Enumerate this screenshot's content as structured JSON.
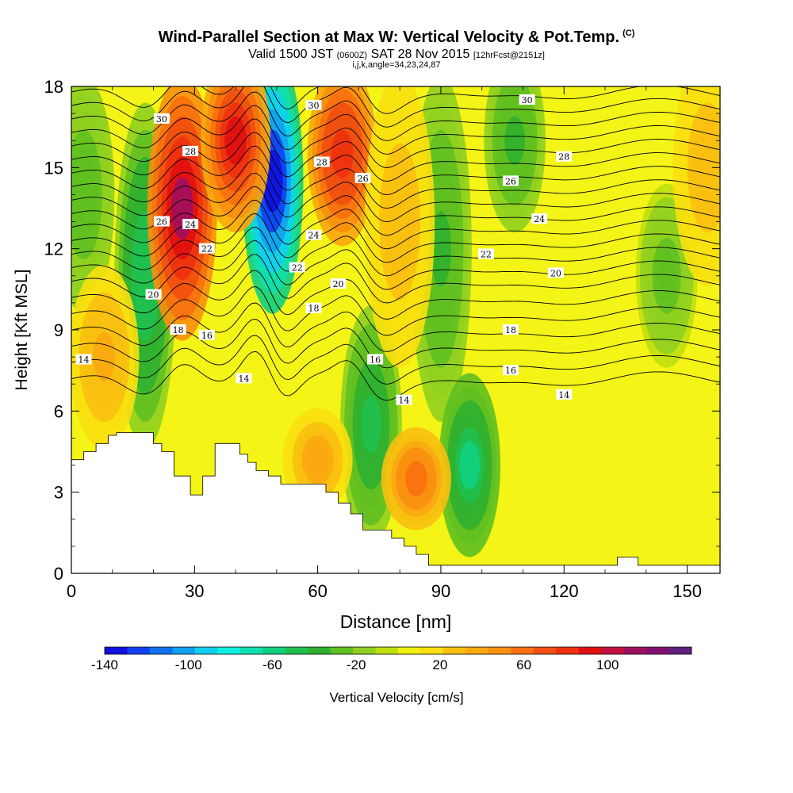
{
  "header": {
    "title": "Wind-Parallel Section at Max W: Vertical Velocity & Pot.Temp.",
    "copyright": "(C)",
    "valid_main": "Valid 1500 JST",
    "valid_utc": "(0600Z)",
    "valid_date": "SAT 28 Nov 2015",
    "forecast": "[12hrFcst@2151z]",
    "indices": "i,j,k,angle=34,23,24,87"
  },
  "chart_data": {
    "type": "heatmap",
    "xlabel": "Distance [nm]",
    "ylabel": "Height [Kft MSL]",
    "xlim": [
      0,
      158
    ],
    "ylim": [
      0,
      18
    ],
    "xticks": [
      0,
      30,
      60,
      90,
      120,
      150
    ],
    "yticks": [
      0,
      3,
      6,
      9,
      12,
      15,
      18
    ],
    "grid": false,
    "colorbar": {
      "label": "Vertical Velocity [cm/s]",
      "min": -140,
      "max": 140,
      "step": 10,
      "tick_labels": [
        -140,
        -100,
        -60,
        -20,
        20,
        60,
        100
      ],
      "colors": [
        "#1010e0",
        "#1040f0",
        "#1070f0",
        "#10a0f0",
        "#10d0f0",
        "#10f0e0",
        "#10e0b0",
        "#10d080",
        "#20c050",
        "#30b030",
        "#60c020",
        "#90d020",
        "#c0e010",
        "#f0f010",
        "#f8e010",
        "#f8c010",
        "#f8a810",
        "#f89010",
        "#f87010",
        "#f05010",
        "#f03010",
        "#e01010",
        "#c01040",
        "#a01060",
        "#801070",
        "#602080"
      ]
    },
    "updraft_bands": [
      {
        "x": 27,
        "w": 108,
        "z": 13.5,
        "dz": 4.5
      },
      {
        "x": 40,
        "w": 88,
        "z": 16,
        "dz": 3
      },
      {
        "x": 66,
        "w": 85,
        "z": 15.5,
        "dz": 3
      },
      {
        "x": 60,
        "w": 40,
        "z": 4.2,
        "dz": 1.5
      },
      {
        "x": 84,
        "w": 60,
        "z": 3.5,
        "dz": 1.5
      },
      {
        "x": 8,
        "w": 35,
        "z": 8,
        "dz": 3
      },
      {
        "x": 80,
        "w": 30,
        "z": 13,
        "dz": 5
      },
      {
        "x": 155,
        "w": 30,
        "z": 15,
        "dz": 4
      }
    ],
    "downdraft_bands": [
      {
        "x": 49,
        "w": -135,
        "z": 14.5,
        "dz": 4.5
      },
      {
        "x": 18,
        "w": -50,
        "z": 11,
        "dz": 6
      },
      {
        "x": 3,
        "w": -30,
        "z": 14,
        "dz": 4
      },
      {
        "x": 73,
        "w": -45,
        "z": 5.5,
        "dz": 4
      },
      {
        "x": 90,
        "w": -35,
        "z": 12,
        "dz": 6
      },
      {
        "x": 97,
        "w": -55,
        "z": 4,
        "dz": 3
      },
      {
        "x": 108,
        "w": -35,
        "z": 16,
        "dz": 3
      },
      {
        "x": 145,
        "w": -25,
        "z": 11,
        "dz": 3
      }
    ],
    "isentropes": [
      {
        "theta": 14,
        "z": 7.2
      },
      {
        "theta": 15,
        "z": 7.8
      },
      {
        "theta": 16,
        "z": 8.4
      },
      {
        "theta": 17,
        "z": 9.0
      },
      {
        "theta": 18,
        "z": 9.6
      },
      {
        "theta": 19,
        "z": 10.2
      },
      {
        "theta": 20,
        "z": 10.8
      },
      {
        "theta": 21,
        "z": 11.3
      },
      {
        "theta": 22,
        "z": 11.8
      },
      {
        "theta": 23,
        "z": 12.3
      },
      {
        "theta": 24,
        "z": 12.8
      },
      {
        "theta": 25,
        "z": 13.3
      },
      {
        "theta": 26,
        "z": 13.8
      },
      {
        "theta": 27,
        "z": 14.3
      },
      {
        "theta": 28,
        "z": 14.8
      },
      {
        "theta": 29,
        "z": 15.3
      },
      {
        "theta": 30,
        "z": 15.8
      },
      {
        "theta": 31,
        "z": 16.3
      },
      {
        "theta": 32,
        "z": 16.8
      },
      {
        "theta": 33,
        "z": 17.3
      },
      {
        "theta": 34,
        "z": 17.8
      }
    ],
    "isentrope_labels": [
      {
        "text": "14",
        "x": 3,
        "z": 7.9
      },
      {
        "text": "14",
        "x": 42,
        "z": 7.2
      },
      {
        "text": "14",
        "x": 81,
        "z": 6.4
      },
      {
        "text": "14",
        "x": 120,
        "z": 6.6
      },
      {
        "text": "16",
        "x": 33,
        "z": 8.8
      },
      {
        "text": "16",
        "x": 74,
        "z": 7.9
      },
      {
        "text": "16",
        "x": 107,
        "z": 7.5
      },
      {
        "text": "18",
        "x": 26,
        "z": 9.0
      },
      {
        "text": "18",
        "x": 59,
        "z": 9.8
      },
      {
        "text": "18",
        "x": 107,
        "z": 9.0
      },
      {
        "text": "20",
        "x": 20,
        "z": 10.3
      },
      {
        "text": "20",
        "x": 65,
        "z": 10.7
      },
      {
        "text": "20",
        "x": 118,
        "z": 11.1
      },
      {
        "text": "22",
        "x": 33,
        "z": 12.0
      },
      {
        "text": "22",
        "x": 55,
        "z": 11.3
      },
      {
        "text": "22",
        "x": 101,
        "z": 11.8
      },
      {
        "text": "24",
        "x": 29,
        "z": 12.9
      },
      {
        "text": "24",
        "x": 59,
        "z": 12.5
      },
      {
        "text": "24",
        "x": 114,
        "z": 13.1
      },
      {
        "text": "26",
        "x": 22,
        "z": 13.0
      },
      {
        "text": "26",
        "x": 71,
        "z": 14.6
      },
      {
        "text": "26",
        "x": 107,
        "z": 14.5
      },
      {
        "text": "28",
        "x": 29,
        "z": 15.6
      },
      {
        "text": "28",
        "x": 61,
        "z": 15.2
      },
      {
        "text": "28",
        "x": 120,
        "z": 15.4
      },
      {
        "text": "30",
        "x": 22,
        "z": 16.8
      },
      {
        "text": "30",
        "x": 59,
        "z": 17.3
      },
      {
        "text": "30",
        "x": 111,
        "z": 17.5
      }
    ],
    "terrain": [
      [
        0,
        4.2
      ],
      [
        3,
        4.2
      ],
      [
        3,
        4.5
      ],
      [
        6,
        4.5
      ],
      [
        6,
        4.8
      ],
      [
        9,
        4.8
      ],
      [
        9,
        5.1
      ],
      [
        11,
        5.1
      ],
      [
        11,
        5.2
      ],
      [
        20,
        5.2
      ],
      [
        20,
        4.8
      ],
      [
        22,
        4.8
      ],
      [
        22,
        4.5
      ],
      [
        25,
        4.5
      ],
      [
        25,
        3.6
      ],
      [
        29,
        3.6
      ],
      [
        29,
        2.9
      ],
      [
        32,
        2.9
      ],
      [
        32,
        3.6
      ],
      [
        35,
        3.6
      ],
      [
        35,
        4.8
      ],
      [
        41,
        4.8
      ],
      [
        41,
        4.4
      ],
      [
        43,
        4.4
      ],
      [
        43,
        4.1
      ],
      [
        45,
        4.1
      ],
      [
        45,
        3.8
      ],
      [
        48,
        3.8
      ],
      [
        48,
        3.6
      ],
      [
        51,
        3.6
      ],
      [
        51,
        3.3
      ],
      [
        62,
        3.3
      ],
      [
        62,
        3.0
      ],
      [
        65,
        3.0
      ],
      [
        65,
        2.6
      ],
      [
        68,
        2.6
      ],
      [
        68,
        2.2
      ],
      [
        71,
        2.2
      ],
      [
        71,
        1.6
      ],
      [
        78,
        1.6
      ],
      [
        78,
        1.3
      ],
      [
        81,
        1.3
      ],
      [
        81,
        1.0
      ],
      [
        84,
        1.0
      ],
      [
        84,
        0.7
      ],
      [
        87,
        0.7
      ],
      [
        87,
        0.3
      ],
      [
        133,
        0.3
      ],
      [
        133,
        0.6
      ],
      [
        138,
        0.6
      ],
      [
        138,
        0.3
      ],
      [
        158,
        0.3
      ]
    ]
  }
}
